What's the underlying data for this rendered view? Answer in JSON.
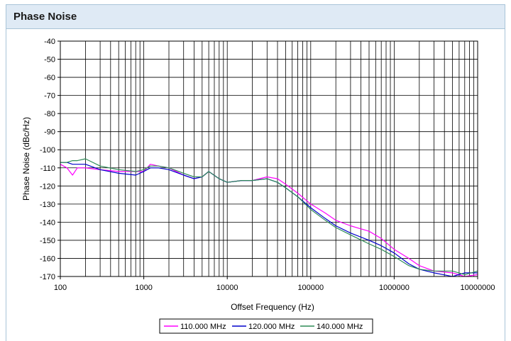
{
  "panel": {
    "title": "Phase Noise"
  },
  "chart_data": {
    "type": "line",
    "title": "",
    "xlabel": "Offset Frequency (Hz)",
    "ylabel": "Phase Noise (dBc/Hz)",
    "xscale": "log",
    "xlim": [
      100,
      10000000
    ],
    "ylim": [
      -170,
      -40
    ],
    "xticks": [
      "100",
      "1000",
      "10000",
      "100000",
      "1000000",
      "10000000"
    ],
    "yticks": [
      "-40",
      "-50",
      "-60",
      "-70",
      "-80",
      "-90",
      "-100",
      "-110",
      "-120",
      "-130",
      "-140",
      "-150",
      "-160",
      "-170"
    ],
    "grid": true,
    "legend_position": "bottom-center",
    "series": [
      {
        "name": "110.000 MHz",
        "color": "#ff00ff",
        "x": [
          100,
          120,
          140,
          160,
          200,
          300,
          500,
          800,
          1000,
          1200,
          1500,
          2000,
          3000,
          4000,
          5000,
          6000,
          8000,
          10000,
          15000,
          20000,
          30000,
          40000,
          50000,
          70000,
          100000,
          150000,
          200000,
          300000,
          500000,
          700000,
          1000000,
          1500000,
          2000000,
          3000000,
          5000000,
          7000000,
          10000000
        ],
        "y": [
          -108,
          -110,
          -114,
          -110,
          -110,
          -111,
          -112,
          -112,
          -112,
          -108,
          -109,
          -110,
          -114,
          -116,
          -115,
          -112,
          -116,
          -118,
          -117,
          -117,
          -115,
          -116,
          -119,
          -124,
          -130,
          -135,
          -139,
          -142,
          -145,
          -149,
          -155,
          -160,
          -164,
          -167,
          -168,
          -170,
          -169
        ]
      },
      {
        "name": "120.000 MHz",
        "color": "#0000cc",
        "x": [
          100,
          120,
          140,
          160,
          200,
          300,
          500,
          800,
          1000,
          1200,
          1500,
          2000,
          3000,
          4000,
          5000,
          6000,
          8000,
          10000,
          15000,
          20000,
          30000,
          40000,
          50000,
          70000,
          100000,
          150000,
          200000,
          300000,
          500000,
          700000,
          1000000,
          1500000,
          2000000,
          3000000,
          5000000,
          7000000,
          10000000
        ],
        "y": [
          -107,
          -107,
          -108,
          -108,
          -108,
          -111,
          -113,
          -114,
          -112,
          -110,
          -110,
          -111,
          -114,
          -116,
          -115,
          -112,
          -116,
          -118,
          -117,
          -117,
          -116,
          -118,
          -121,
          -126,
          -132,
          -138,
          -142,
          -146,
          -150,
          -153,
          -157,
          -163,
          -166,
          -168,
          -170,
          -168,
          -168
        ]
      },
      {
        "name": "140.000 MHz",
        "color": "#2e8b57",
        "x": [
          100,
          120,
          140,
          160,
          200,
          300,
          500,
          800,
          1000,
          1200,
          1500,
          2000,
          3000,
          4000,
          5000,
          6000,
          8000,
          10000,
          15000,
          20000,
          30000,
          40000,
          50000,
          70000,
          100000,
          150000,
          200000,
          300000,
          500000,
          700000,
          1000000,
          1500000,
          2000000,
          3000000,
          5000000,
          7000000,
          10000000
        ],
        "y": [
          -107,
          -107,
          -106,
          -106,
          -105,
          -109,
          -111,
          -112,
          -111,
          -109,
          -109,
          -110,
          -113,
          -115,
          -115,
          -112,
          -116,
          -118,
          -117,
          -117,
          -116,
          -118,
          -121,
          -126,
          -133,
          -139,
          -143,
          -147,
          -152,
          -155,
          -159,
          -164,
          -166,
          -167,
          -167,
          -169,
          -167
        ]
      }
    ]
  }
}
